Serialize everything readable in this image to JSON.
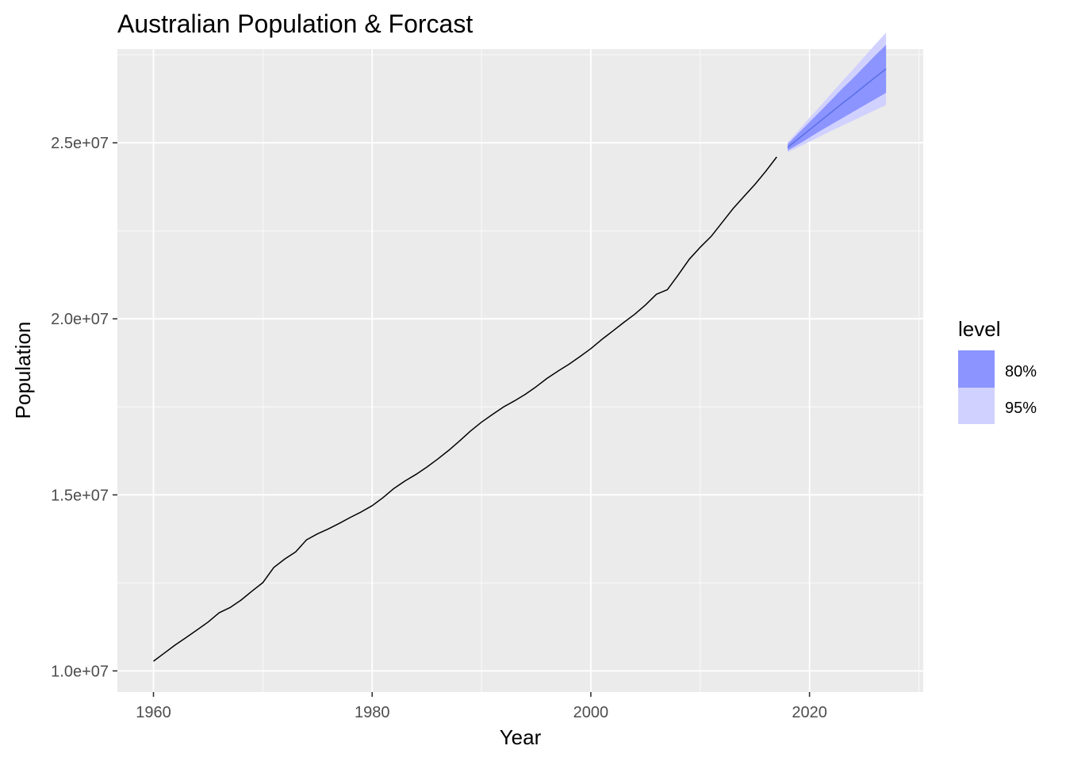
{
  "chart_data": {
    "type": "line",
    "title": "Australian Population & Forcast",
    "xlabel": "Year",
    "ylabel": "Population",
    "xlim": [
      1956.7,
      2030.4
    ],
    "ylim": [
      9400000,
      27660000
    ],
    "x_ticks": [
      1960,
      1980,
      2000,
      2020
    ],
    "x_tick_labels": [
      "1960",
      "1980",
      "2000",
      "2020"
    ],
    "y_ticks": [
      10000000,
      15000000,
      20000000,
      25000000
    ],
    "y_tick_labels": [
      "1.0e+07",
      "1.5e+07",
      "2.0e+07",
      "2.5e+07"
    ],
    "grid": true,
    "legend_position": "right",
    "colors": {
      "panel_bg": "#ebebeb",
      "grid_major": "#ffffff",
      "history_line": "#000000",
      "forecast_line": "#5a6fe6",
      "band_80": "#8c94ff",
      "band_95": "#d1d1ff"
    },
    "legend": {
      "title": "level",
      "entries": [
        {
          "label": "80%",
          "color": "#8c94ff"
        },
        {
          "label": "95%",
          "color": "#d1d1ff"
        }
      ]
    },
    "series": [
      {
        "kind": "history",
        "x": [
          1960,
          1961,
          1962,
          1963,
          1964,
          1965,
          1966,
          1967,
          1968,
          1969,
          1970,
          1971,
          1972,
          1973,
          1974,
          1975,
          1976,
          1977,
          1978,
          1979,
          1980,
          1981,
          1982,
          1983,
          1984,
          1985,
          1986,
          1987,
          1988,
          1989,
          1990,
          1991,
          1992,
          1993,
          1994,
          1995,
          1996,
          1997,
          1998,
          1999,
          2000,
          2001,
          2002,
          2003,
          2004,
          2005,
          2006,
          2007,
          2008,
          2009,
          2010,
          2011,
          2012,
          2013,
          2014,
          2015,
          2016,
          2017
        ],
        "values": [
          10276000,
          10508000,
          10740000,
          10950000,
          11167000,
          11388000,
          11651000,
          11799000,
          12009000,
          12263000,
          12507000,
          12937000,
          13177000,
          13380000,
          13723000,
          13893000,
          14033000,
          14192000,
          14359000,
          14516000,
          14692000,
          14923000,
          15184000,
          15394000,
          15579000,
          15788000,
          16018000,
          16264000,
          16532000,
          16814000,
          17065000,
          17284000,
          17495000,
          17667000,
          17855000,
          18072000,
          18311000,
          18517000,
          18711000,
          18926000,
          19153000,
          19413000,
          19651000,
          19895000,
          20127000,
          20395000,
          20698000,
          20827000,
          21249000,
          21692000,
          22032000,
          22340000,
          22733000,
          23128000,
          23475000,
          23816000,
          24191000,
          24598000
        ]
      },
      {
        "kind": "forecast",
        "x": [
          2018,
          2019,
          2020,
          2021,
          2022,
          2023,
          2024,
          2025,
          2026,
          2027
        ],
        "values": [
          24870000,
          25120000,
          25370000,
          25620000,
          25870000,
          26120000,
          26360000,
          26610000,
          26860000,
          27100000
        ],
        "lo80": [
          24780000,
          24960000,
          25150000,
          25340000,
          25520000,
          25700000,
          25880000,
          26060000,
          26240000,
          26420000
        ],
        "hi80": [
          24960000,
          25280000,
          25590000,
          25900000,
          26220000,
          26540000,
          26840000,
          27160000,
          27480000,
          27780000
        ],
        "lo95": [
          24730000,
          24880000,
          25030000,
          25190000,
          25340000,
          25490000,
          25630000,
          25780000,
          25930000,
          26070000
        ],
        "hi95": [
          25010000,
          25360000,
          25710000,
          26050000,
          26400000,
          26750000,
          27090000,
          27440000,
          27790000,
          28130000
        ]
      }
    ]
  }
}
